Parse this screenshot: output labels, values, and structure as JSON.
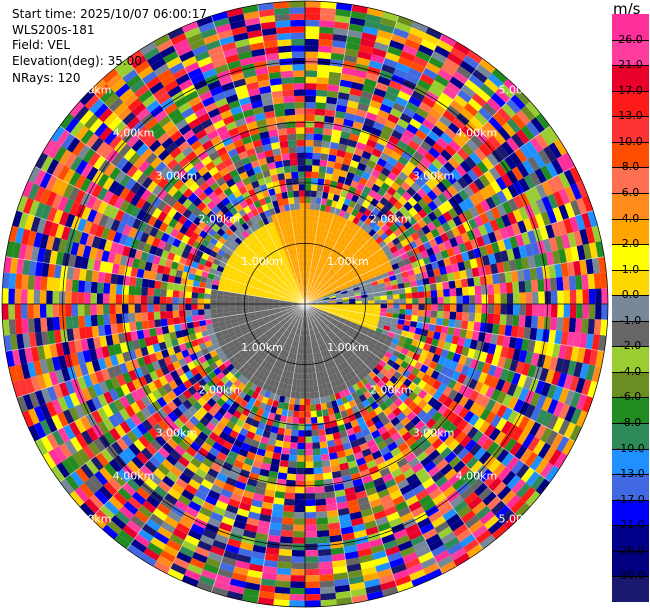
{
  "header": {
    "start_time": "Start time: 2025/10/07 06:00:17",
    "instrument": "WLS200s-181",
    "field": "Field: VEL",
    "elevation": "Elevation(deg): 35.00",
    "nrays": "NRays: 120"
  },
  "chart_data": {
    "type": "heatmap",
    "projection": "polar-ppi",
    "field": "VEL",
    "units": "m/s",
    "n_rays": 120,
    "max_range_km": 5.0,
    "range_rings_km": [
      1.0,
      2.0,
      3.0,
      4.0,
      5.0
    ],
    "ring_labels": [
      "1.00km",
      "2.00km",
      "3.00km",
      "4.00km",
      "5.00km"
    ],
    "colorbar": {
      "labels": [
        "26.0",
        "21.0",
        "17.0",
        "13.0",
        "10.0",
        "8.0",
        "6.0",
        "4.0",
        "2.0",
        "1.0",
        "0.0",
        "-1.0",
        "-2.0",
        "-4.0",
        "-6.0",
        "-8.0",
        "-10.0",
        "-13.0",
        "-17.0",
        "-21.0",
        "-26.0",
        "-30.0"
      ],
      "colors": [
        "#ff2e9a",
        "#ff3d9e",
        "#e8002a",
        "#ff1a1a",
        "#ff3333",
        "#ff4d00",
        "#ff6f52",
        "#ff8c1a",
        "#ffa500",
        "#ffff00",
        "#ffd700",
        "#778899",
        "#666666",
        "#9acd32",
        "#6b8e23",
        "#228b22",
        "#2e8b57",
        "#1e90ff",
        "#4169e1",
        "#0000ff",
        "#00008b",
        "#000080",
        "#191970"
      ]
    },
    "inner_pattern": {
      "description_regions": [
        {
          "sector_deg": [
            340,
            430
          ],
          "range_km": [
            0,
            1.6
          ],
          "value": 2.0
        },
        {
          "sector_deg": [
            90,
            110
          ],
          "range_km": [
            0,
            1.3
          ],
          "value": 0.0
        },
        {
          "sector_deg": [
            110,
            190
          ],
          "range_km": [
            0.1,
            1.6
          ],
          "value": -2.0
        },
        {
          "sector_deg": [
            190,
            280
          ],
          "range_km": [
            0.1,
            1.6
          ],
          "value": -2.0
        },
        {
          "sector_deg": [
            270,
            340
          ],
          "range_km": [
            0,
            1.5
          ],
          "value": 0.0
        }
      ]
    },
    "outer_noise_range_km": [
      1.6,
      5.0
    ]
  }
}
